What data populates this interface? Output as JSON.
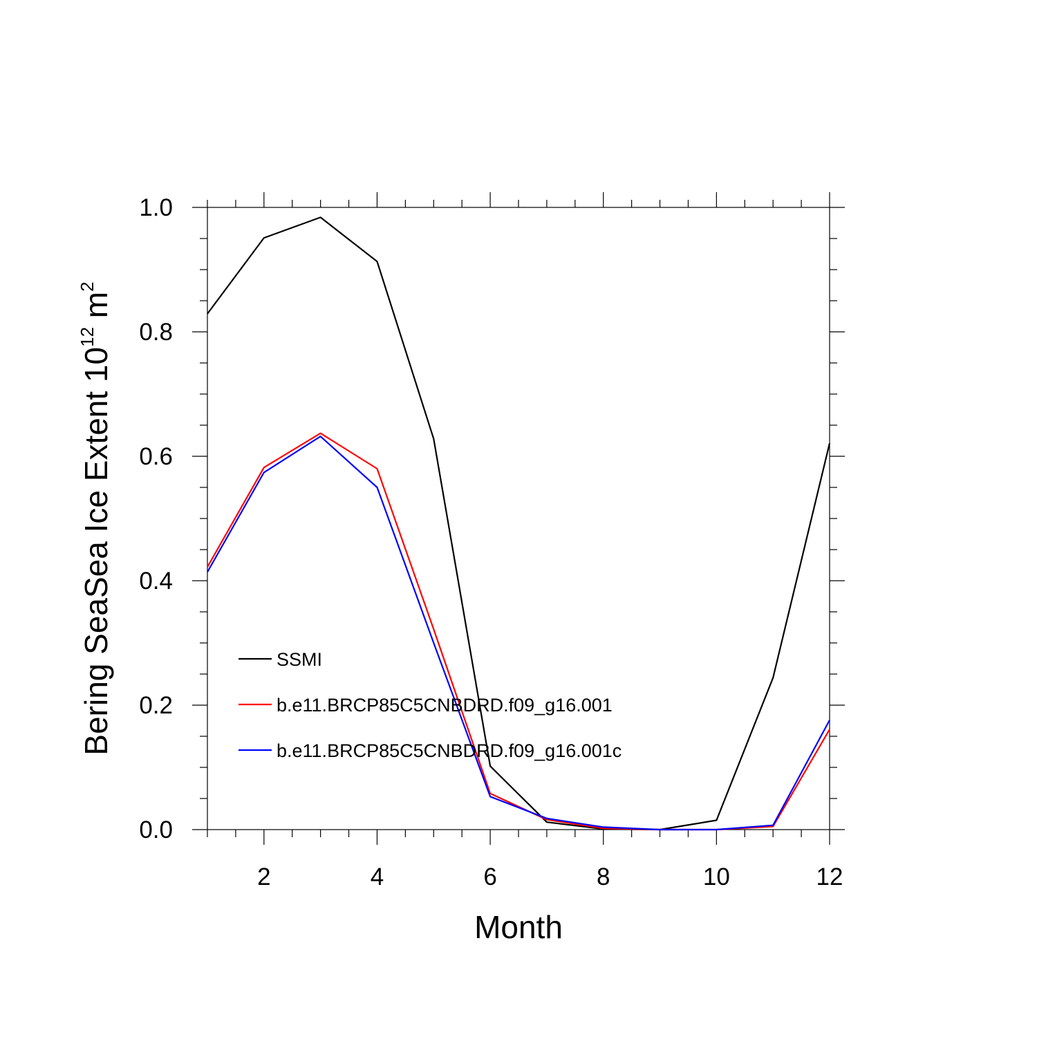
{
  "chart_data": {
    "type": "line",
    "title": "",
    "xlabel": "Month",
    "ylabel_main": "Bering SeaSea Ice Extent 10",
    "ylabel_exp": "12",
    "ylabel_unit": " m",
    "ylabel_unit_exp": "2",
    "xlim": [
      1,
      12
    ],
    "ylim": [
      0,
      1.0
    ],
    "x_ticks": [
      2,
      4,
      6,
      8,
      10,
      12
    ],
    "x_tick_labels": [
      "2",
      "4",
      "6",
      "8",
      "10",
      "12"
    ],
    "y_ticks": [
      0,
      0.2,
      0.4,
      0.6,
      0.8,
      1.0
    ],
    "y_tick_labels": [
      "0.0",
      "0.2",
      "0.4",
      "0.6",
      "0.8",
      "1.0"
    ],
    "legend_position": "lower-left",
    "x": [
      1,
      2,
      3,
      4,
      5,
      6,
      7,
      8,
      9,
      10,
      11,
      12
    ],
    "series": [
      {
        "name": "SSMI",
        "color": "#000000",
        "values": [
          0.829,
          0.951,
          0.984,
          0.913,
          0.628,
          0.102,
          0.012,
          0.001,
          0.0,
          0.015,
          0.244,
          0.621
        ]
      },
      {
        "name": "b.e11.BRCP85C5CNBDRD.f09_g16.001",
        "color": "#ff0000",
        "values": [
          0.422,
          0.582,
          0.637,
          0.58,
          0.322,
          0.058,
          0.016,
          0.002,
          0.0,
          0.0,
          0.005,
          0.161
        ]
      },
      {
        "name": "b.e11.BRCP85C5CNBDRD.f09_g16.001c",
        "color": "#0000ff",
        "values": [
          0.414,
          0.574,
          0.632,
          0.55,
          0.3,
          0.053,
          0.018,
          0.004,
          0.0,
          0.0,
          0.007,
          0.176
        ]
      }
    ]
  }
}
